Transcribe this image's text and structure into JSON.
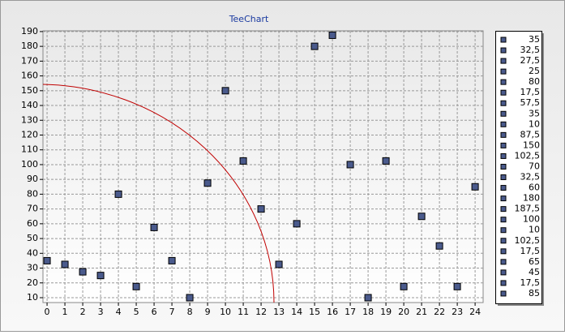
{
  "chart_data": {
    "type": "scatter",
    "title": "TeeChart",
    "x": [
      0,
      1,
      2,
      3,
      4,
      5,
      6,
      7,
      8,
      9,
      10,
      11,
      12,
      13,
      14,
      15,
      16,
      17,
      18,
      19,
      20,
      21,
      22,
      23,
      24
    ],
    "values": [
      35,
      32.5,
      27.5,
      25,
      80,
      17.5,
      57.5,
      35,
      10,
      87.5,
      150,
      102.5,
      70,
      32.5,
      60,
      180,
      187.5,
      100,
      10,
      102.5,
      17.5,
      65,
      45,
      17.5,
      85
    ],
    "value_labels": [
      "35",
      "32,5",
      "27,5",
      "25",
      "80",
      "17,5",
      "57,5",
      "35",
      "10",
      "87,5",
      "150",
      "102,5",
      "70",
      "32,5",
      "60",
      "180",
      "187,5",
      "100",
      "10",
      "102,5",
      "17,5",
      "65",
      "45",
      "17,5",
      "85"
    ],
    "color": "#4a5a8c",
    "xlim": [
      -0.23,
      24.45
    ],
    "xticks": [
      0,
      1,
      2,
      3,
      4,
      5,
      6,
      7,
      8,
      9,
      10,
      11,
      12,
      13,
      14,
      15,
      16,
      17,
      18,
      19,
      20,
      21,
      22,
      23,
      24
    ],
    "ylim": [
      6.7,
      190.5
    ],
    "yticks": [
      10,
      20,
      30,
      40,
      50,
      60,
      70,
      80,
      90,
      100,
      110,
      120,
      130,
      140,
      150,
      160,
      170,
      180,
      190
    ],
    "grid": true,
    "legend": "right"
  }
}
